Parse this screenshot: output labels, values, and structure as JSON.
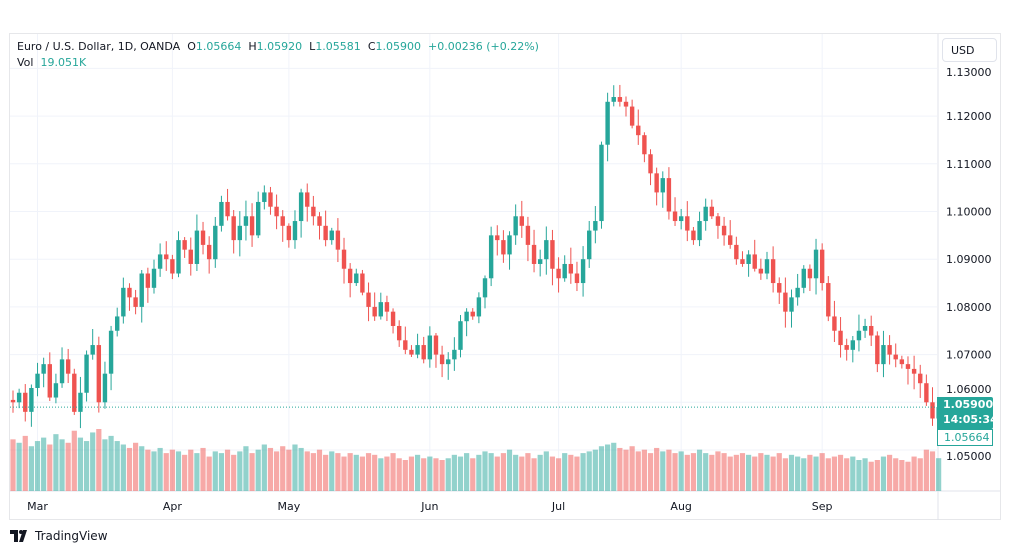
{
  "header": {
    "symbol": "Euro / U.S. Dollar, 1D, OANDA",
    "o_label": "O",
    "o": "1.05664",
    "h_label": "H",
    "h": "1.05920",
    "l_label": "L",
    "l": "1.05581",
    "c_label": "C",
    "c": "1.05900",
    "change": "+0.00236 (+0.22%)",
    "vol_label": "Vol",
    "vol": "19.051K"
  },
  "currency_button": "USD",
  "price_label": {
    "price": "1.05900",
    "countdown": "14:05:34",
    "open": "1.05664"
  },
  "footer": {
    "brand": "TradingView"
  },
  "colors": {
    "up": "#26a69a",
    "down": "#ef5350"
  },
  "chart_data": {
    "type": "candlestick",
    "title": "Euro / U.S. Dollar, 1D, OANDA",
    "ylim": [
      1.0425,
      1.1315
    ],
    "yticks": [
      "1.13000",
      "1.12000",
      "1.11000",
      "1.10000",
      "1.09000",
      "1.08000",
      "1.07000",
      "1.06000",
      "1.05000"
    ],
    "ytick_values": [
      1.13,
      1.12,
      1.11,
      1.1,
      1.09,
      1.08,
      1.07,
      1.06,
      1.05
    ],
    "xticks": [
      {
        "label": "Mar",
        "index": 4
      },
      {
        "label": "Apr",
        "index": 26
      },
      {
        "label": "May",
        "index": 45
      },
      {
        "label": "Jun",
        "index": 68
      },
      {
        "label": "Jul",
        "index": 89
      },
      {
        "label": "Aug",
        "index": 109
      },
      {
        "label": "Sep",
        "index": 132
      }
    ],
    "first_open": 1.0605,
    "closes": [
      1.06,
      1.062,
      1.058,
      1.063,
      1.066,
      1.068,
      1.061,
      1.064,
      1.069,
      1.066,
      1.058,
      1.062,
      1.07,
      1.072,
      1.06,
      1.066,
      1.075,
      1.078,
      1.084,
      1.082,
      1.08,
      1.087,
      1.084,
      1.088,
      1.091,
      1.09,
      1.087,
      1.094,
      1.092,
      1.089,
      1.096,
      1.093,
      1.09,
      1.097,
      1.102,
      1.099,
      1.094,
      1.097,
      1.099,
      1.095,
      1.102,
      1.104,
      1.101,
      1.099,
      1.097,
      1.094,
      1.098,
      1.104,
      1.101,
      1.099,
      1.097,
      1.094,
      1.096,
      1.092,
      1.088,
      1.085,
      1.087,
      1.083,
      1.08,
      1.078,
      1.081,
      1.079,
      1.076,
      1.073,
      1.071,
      1.07,
      1.072,
      1.069,
      1.074,
      1.07,
      1.068,
      1.069,
      1.071,
      1.077,
      1.079,
      1.078,
      1.082,
      1.086,
      1.095,
      1.094,
      1.091,
      1.095,
      1.099,
      1.097,
      1.093,
      1.089,
      1.09,
      1.094,
      1.088,
      1.086,
      1.089,
      1.087,
      1.085,
      1.09,
      1.096,
      1.098,
      1.114,
      1.123,
      1.124,
      1.123,
      1.122,
      1.118,
      1.116,
      1.112,
      1.108,
      1.104,
      1.107,
      1.1,
      1.098,
      1.099,
      1.096,
      1.094,
      1.098,
      1.101,
      1.099,
      1.097,
      1.095,
      1.093,
      1.09,
      1.089,
      1.091,
      1.088,
      1.087,
      1.09,
      1.085,
      1.083,
      1.079,
      1.082,
      1.084,
      1.088,
      1.086,
      1.092,
      1.085,
      1.078,
      1.075,
      1.072,
      1.071,
      1.073,
      1.075,
      1.076,
      1.074,
      1.068,
      1.072,
      1.07,
      1.069,
      1.068,
      1.067,
      1.066,
      1.064,
      1.06,
      1.0566,
      1.059
    ],
    "volumes_k": [
      30,
      28,
      32,
      26,
      29,
      31,
      27,
      33,
      30,
      28,
      35,
      31,
      29,
      34,
      36,
      30,
      32,
      29,
      27,
      25,
      28,
      26,
      24,
      23,
      25,
      22,
      24,
      23,
      21,
      24,
      22,
      25,
      20,
      23,
      22,
      24,
      21,
      23,
      26,
      22,
      24,
      27,
      25,
      23,
      26,
      24,
      27,
      25,
      23,
      22,
      24,
      21,
      23,
      22,
      20,
      22,
      21,
      20,
      22,
      21,
      19,
      20,
      22,
      19,
      18,
      20,
      21,
      19,
      20,
      19,
      18,
      19,
      21,
      20,
      22,
      19,
      21,
      23,
      22,
      20,
      22,
      24,
      21,
      20,
      22,
      19,
      21,
      23,
      20,
      19,
      22,
      21,
      20,
      22,
      23,
      24,
      26,
      27,
      28,
      25,
      24,
      26,
      23,
      24,
      22,
      25,
      23,
      24,
      22,
      23,
      21,
      22,
      24,
      22,
      21,
      23,
      22,
      20,
      21,
      22,
      21,
      20,
      22,
      21,
      20,
      22,
      19,
      21,
      20,
      19,
      21,
      20,
      22,
      19,
      20,
      21,
      19,
      20,
      18,
      19,
      17,
      18,
      20,
      21,
      19,
      18,
      17,
      20,
      19,
      24,
      23,
      19.051
    ]
  }
}
